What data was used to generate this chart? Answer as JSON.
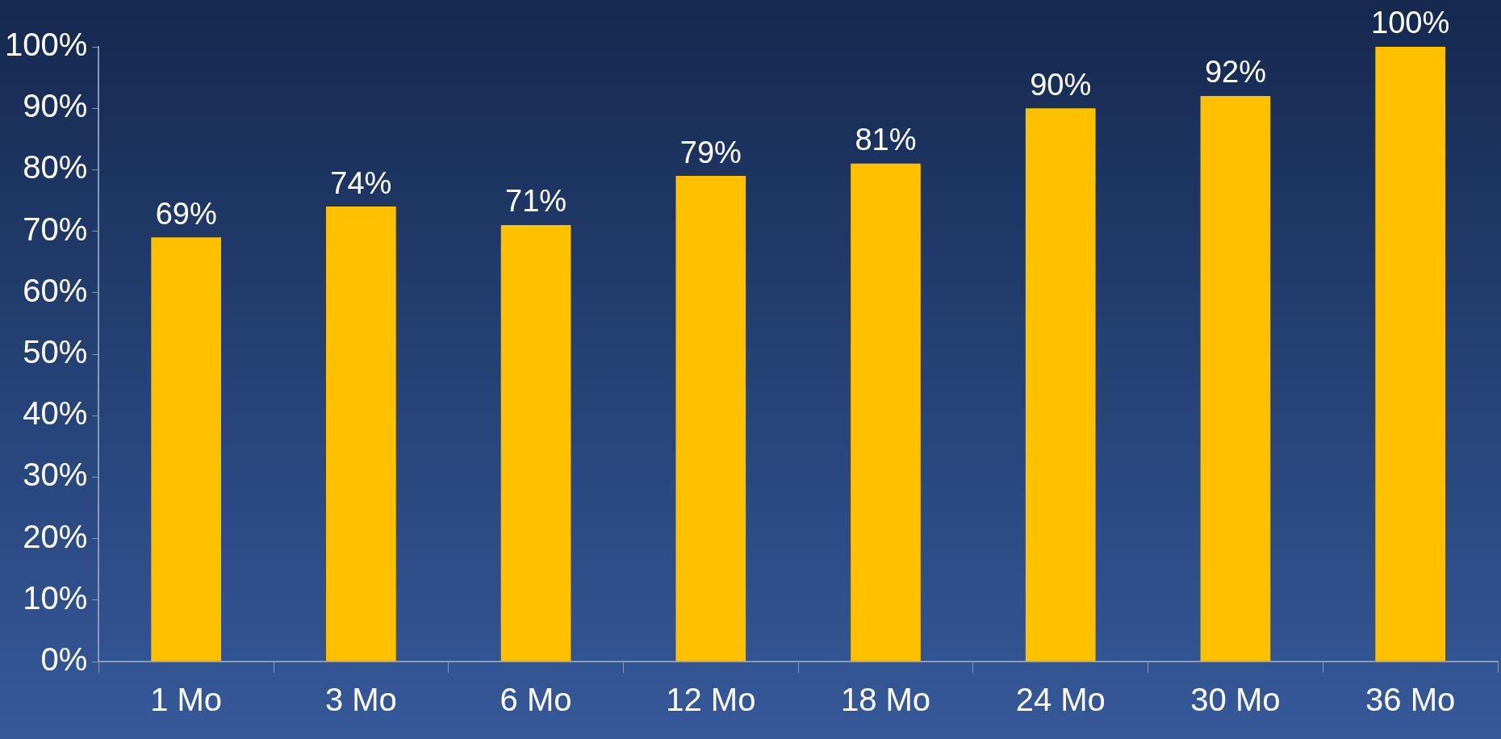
{
  "chart_data": {
    "type": "bar",
    "categories": [
      "1 Mo",
      "3 Mo",
      "6 Mo",
      "12 Mo",
      "18 Mo",
      "24 Mo",
      "30 Mo",
      "36 Mo"
    ],
    "values": [
      69,
      74,
      71,
      79,
      81,
      90,
      92,
      100
    ],
    "value_labels": [
      "69%",
      "74%",
      "71%",
      "79%",
      "81%",
      "90%",
      "92%",
      "100%"
    ],
    "color": "#ffc000",
    "ylim": [
      0,
      100
    ],
    "yticks": [
      {
        "value": 0,
        "label": "0%"
      },
      {
        "value": 10,
        "label": "10%"
      },
      {
        "value": 20,
        "label": "20%"
      },
      {
        "value": 30,
        "label": "30%"
      },
      {
        "value": 40,
        "label": "40%"
      },
      {
        "value": 50,
        "label": "50%"
      },
      {
        "value": 60,
        "label": "60%"
      },
      {
        "value": 70,
        "label": "70%"
      },
      {
        "value": 80,
        "label": "80%"
      },
      {
        "value": 90,
        "label": "90%"
      },
      {
        "value": 100,
        "label": "100%"
      }
    ],
    "grid": false
  }
}
